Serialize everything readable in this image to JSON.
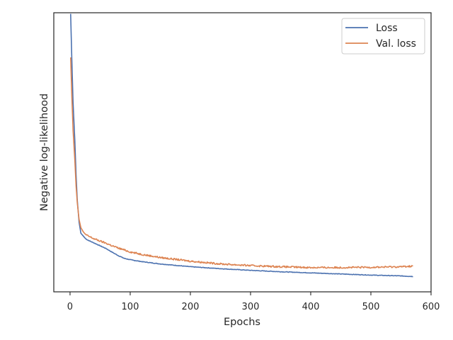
{
  "chart_data": {
    "type": "line",
    "xlabel": "Epochs",
    "ylabel": "Negative log-likelihood",
    "xlim": [
      -27,
      600
    ],
    "ylim": [
      0,
      1
    ],
    "x_ticks": [
      0,
      100,
      200,
      300,
      400,
      500,
      600
    ],
    "y_ticks_shown": false,
    "legend_position": "top-right",
    "y_value_note": "y values on a normalized 0–1 scale relative to the plotted range (the y axis has no tick labels)",
    "series": [
      {
        "name": "Loss",
        "color": "#4c72b0",
        "x": [
          1,
          3,
          5,
          8,
          10,
          12,
          15,
          18,
          22,
          26,
          30,
          40,
          50,
          60,
          70,
          80,
          90,
          100,
          120,
          150,
          200,
          250,
          300,
          350,
          400,
          450,
          500,
          550,
          570
        ],
        "y": [
          0.996,
          0.83,
          0.68,
          0.54,
          0.42,
          0.33,
          0.25,
          0.21,
          0.2,
          0.19,
          0.185,
          0.175,
          0.165,
          0.155,
          0.142,
          0.13,
          0.12,
          0.115,
          0.108,
          0.1,
          0.09,
          0.083,
          0.077,
          0.072,
          0.068,
          0.064,
          0.06,
          0.057,
          0.055
        ]
      },
      {
        "name": "Val. loss",
        "color": "#dd8452",
        "x": [
          1,
          3,
          5,
          8,
          10,
          12,
          15,
          18,
          22,
          26,
          30,
          40,
          50,
          60,
          70,
          80,
          90,
          100,
          120,
          150,
          200,
          250,
          300,
          350,
          400,
          450,
          500,
          550,
          570
        ],
        "y": [
          0.84,
          0.7,
          0.58,
          0.47,
          0.38,
          0.32,
          0.26,
          0.23,
          0.215,
          0.205,
          0.2,
          0.19,
          0.182,
          0.174,
          0.165,
          0.157,
          0.15,
          0.143,
          0.134,
          0.123,
          0.11,
          0.1,
          0.094,
          0.09,
          0.087,
          0.087,
          0.088,
          0.09,
          0.092
        ]
      }
    ]
  }
}
